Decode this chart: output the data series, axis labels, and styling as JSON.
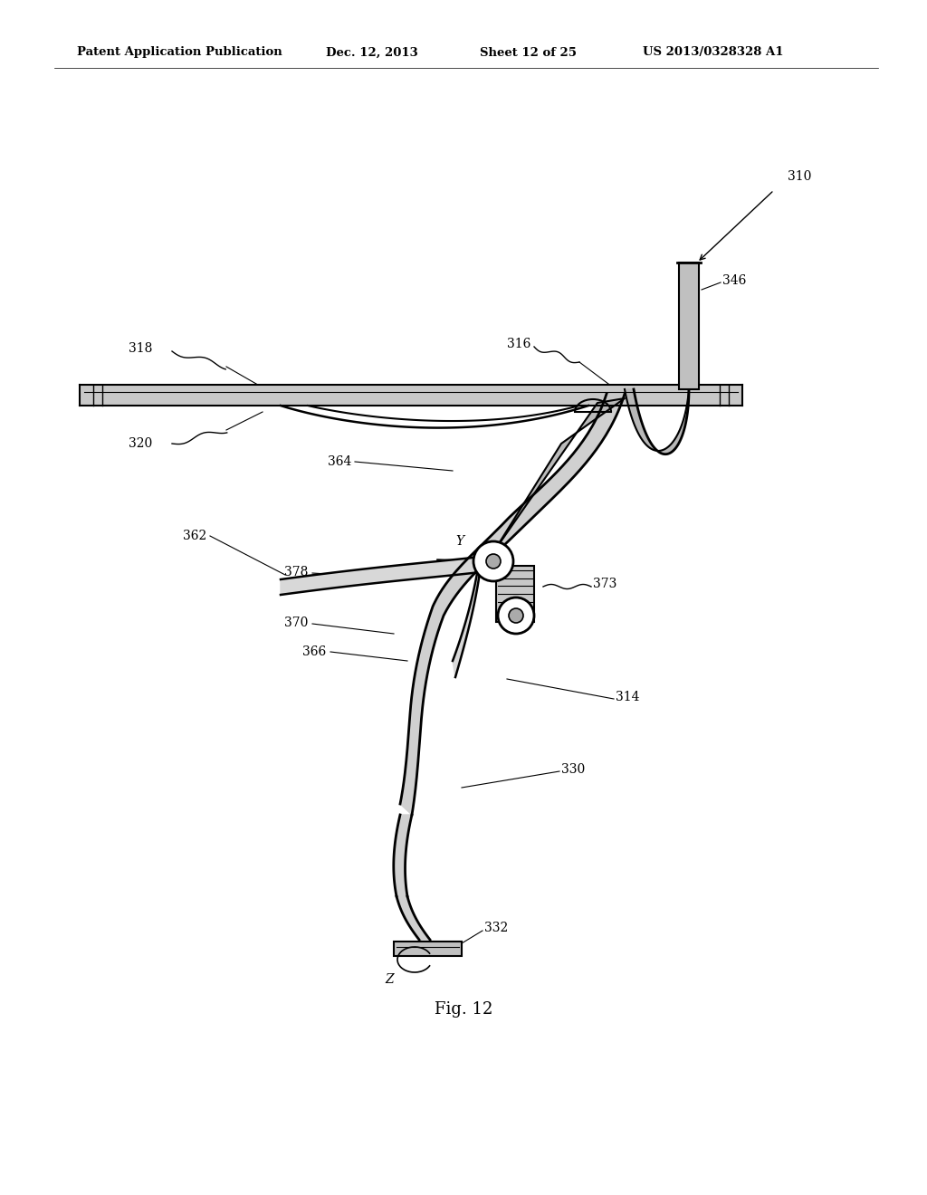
{
  "title": "Patent Application Publication",
  "date": "Dec. 12, 2013",
  "sheet": "Sheet 12 of 25",
  "patent_num": "US 2013/0328328 A1",
  "fig_label": "Fig. 12",
  "background": "#ffffff",
  "line_color": "#000000",
  "header_fontsize": 9.5,
  "fig_label_fontsize": 13,
  "annotation_fontsize": 10
}
